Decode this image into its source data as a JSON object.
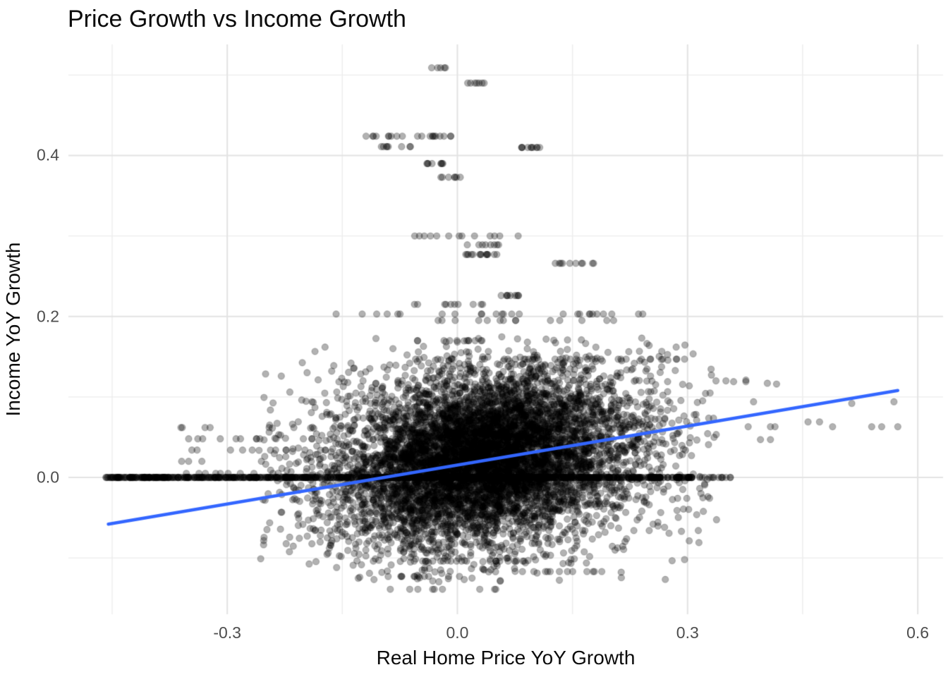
{
  "chart_data": {
    "type": "scatter",
    "title": "Price Growth vs Income Growth",
    "xlabel": "Real Home Price YoY Growth",
    "ylabel": "Income YoY Growth",
    "xlim": [
      -0.507,
      0.633
    ],
    "ylim": [
      -0.17,
      0.538
    ],
    "x_ticks": [
      -0.3,
      0.0,
      0.3,
      0.6
    ],
    "x_tick_labels": [
      "-0.3",
      "0.0",
      "0.3",
      "0.6"
    ],
    "y_ticks": [
      0.0,
      0.2,
      0.4
    ],
    "y_tick_labels": [
      "0.0",
      "0.2",
      "0.4"
    ],
    "x_minor_ticks": [
      -0.45,
      -0.15,
      0.15,
      0.45
    ],
    "y_minor_ticks": [
      -0.1,
      0.1,
      0.3,
      0.5
    ],
    "grid": true,
    "legend": false,
    "style": {
      "background": "#FFFFFF",
      "grid_major_color": "#E3E3E3",
      "grid_minor_color": "#EDEDED",
      "tick_label_color": "#4D4D4D",
      "text_color": "#0B0B0B",
      "point_color": "#000000",
      "point_fill_opacity": 0.3,
      "point_stroke_opacity": 0.2,
      "point_radius": 4.6,
      "trend_color": "#3366FF",
      "trend_width": 4.5
    },
    "trend_line": {
      "type": "linear-fit",
      "x_start": -0.455,
      "y_start": -0.058,
      "x_end": 0.574,
      "y_end": 0.108
    },
    "points_spec": {
      "n_total_approx": 8600,
      "clusters": [
        {
          "cx": 0.035,
          "cy": 0.026,
          "sx": 0.085,
          "sy": 0.048,
          "corr": 0.25,
          "n": 4200,
          "x_bounds": [
            -0.26,
            0.34
          ],
          "y_bounds": [
            -0.13,
            0.175
          ]
        },
        {
          "cx": 0.03,
          "cy": 0.022,
          "sx": 0.115,
          "sy": 0.065,
          "corr": 0.2,
          "n": 2400,
          "x_bounds": [
            -0.26,
            0.34
          ],
          "y_bounds": [
            -0.13,
            0.175
          ]
        },
        {
          "cx": 0.02,
          "cy": 0.02,
          "sx": 0.15,
          "sy": 0.072,
          "corr": 0.15,
          "n": 750,
          "x_bounds": [
            -0.26,
            0.34
          ],
          "y_bounds": [
            -0.13,
            0.175
          ]
        }
      ],
      "zero_income_row": {
        "y": 0.0,
        "x_min": -0.46,
        "x_max": 0.306,
        "n": 900,
        "sparse_x_max": 0.375,
        "sparse_n": 14
      },
      "left_tail": {
        "x_min": -0.365,
        "x_max": -0.185,
        "y_values": [
          0.005,
          0.02,
          0.034,
          0.048,
          0.062
        ],
        "n": 42
      },
      "outlier_rows": [
        {
          "y": 0.509,
          "x_min": -0.038,
          "x_max": -0.009,
          "n": 5
        },
        {
          "y": 0.49,
          "x_min": 0.013,
          "x_max": 0.04,
          "n": 7
        },
        {
          "y": 0.424,
          "x_min": -0.13,
          "x_max": -0.004,
          "n": 20
        },
        {
          "y": 0.411,
          "x_min": -0.106,
          "x_max": -0.04,
          "n": 8
        },
        {
          "y": 0.41,
          "x_min": 0.077,
          "x_max": 0.11,
          "n": 10
        },
        {
          "y": 0.39,
          "x_min": -0.046,
          "x_max": -0.015,
          "n": 8
        },
        {
          "y": 0.373,
          "x_min": -0.026,
          "x_max": 0.004,
          "n": 7
        },
        {
          "y": 0.3,
          "x_min": -0.058,
          "x_max": 0.092,
          "n": 13
        },
        {
          "y": 0.289,
          "x_min": 0.012,
          "x_max": 0.055,
          "n": 8
        },
        {
          "y": 0.277,
          "x_min": 0.009,
          "x_max": 0.052,
          "n": 14
        },
        {
          "y": 0.266,
          "x_min": 0.12,
          "x_max": 0.178,
          "n": 10
        },
        {
          "y": 0.226,
          "x_min": 0.057,
          "x_max": 0.08,
          "n": 9
        },
        {
          "y": 0.215,
          "x_min": -0.06,
          "x_max": 0.036,
          "n": 10
        },
        {
          "y": 0.203,
          "x_min": -0.168,
          "x_max": 0.25,
          "n": 26
        },
        {
          "y": 0.195,
          "x_min": -0.06,
          "x_max": 0.255,
          "n": 14
        },
        {
          "y": 0.17,
          "x_min": -0.055,
          "x_max": 0.04,
          "n": 10
        },
        {
          "y": 0.147,
          "x_min": -0.1,
          "x_max": 0.3,
          "n": 30
        },
        {
          "y": -0.104,
          "x_min": -0.117,
          "x_max": 0.09,
          "n": 20
        },
        {
          "y": -0.117,
          "x_min": 0.08,
          "x_max": 0.19,
          "n": 12
        },
        {
          "y": -0.123,
          "x_min": -0.095,
          "x_max": 0.005,
          "n": 10
        },
        {
          "y": -0.139,
          "x_min": -0.122,
          "x_max": 0.057,
          "n": 9
        }
      ],
      "isolated_points": [
        [
          0.36,
          0.119
        ],
        [
          0.376,
          0.119
        ],
        [
          0.337,
          0.12
        ],
        [
          0.35,
          0.12
        ],
        [
          0.376,
          0.121
        ],
        [
          0.404,
          0.117
        ],
        [
          0.416,
          0.116
        ],
        [
          0.386,
          0.094
        ],
        [
          0.514,
          0.092
        ],
        [
          0.569,
          0.094
        ],
        [
          0.457,
          0.069
        ],
        [
          0.472,
          0.069
        ],
        [
          0.379,
          0.063
        ],
        [
          0.408,
          0.063
        ],
        [
          0.414,
          0.063
        ],
        [
          0.489,
          0.063
        ],
        [
          0.54,
          0.063
        ],
        [
          0.553,
          0.063
        ],
        [
          0.574,
          0.063
        ],
        [
          0.395,
          0.047
        ],
        [
          0.408,
          0.047
        ],
        [
          0.195,
          -0.025
        ],
        [
          0.213,
          -0.025
        ],
        [
          0.241,
          -0.025
        ],
        [
          0.287,
          -0.026
        ],
        [
          0.299,
          -0.026
        ],
        [
          0.2,
          -0.06
        ],
        [
          0.21,
          -0.063
        ],
        [
          0.23,
          -0.066
        ],
        [
          0.25,
          -0.066
        ],
        [
          0.27,
          -0.062
        ],
        [
          0.292,
          -0.067
        ],
        [
          0.314,
          -0.066
        ]
      ]
    }
  }
}
